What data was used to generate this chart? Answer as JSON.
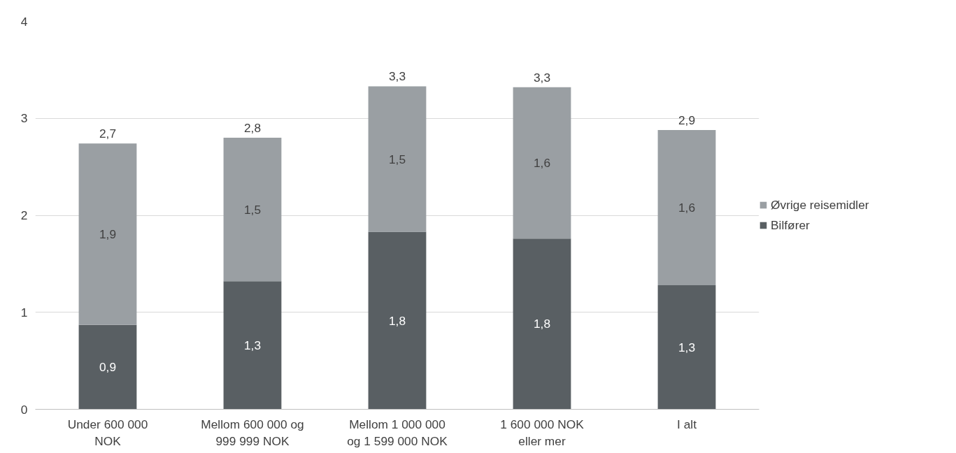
{
  "chart_data": {
    "type": "bar",
    "stacked": true,
    "categories": [
      "Under 600 000\nNOK",
      "Mellom 600 000 og\n999 999 NOK",
      "Mellom 1 000 000\nog 1 599 000 NOK",
      "1 600 000 NOK\neller mer",
      "I alt"
    ],
    "series": [
      {
        "name": "Bilfører",
        "color": "#595f63",
        "values": [
          0.87,
          1.32,
          1.83,
          1.76,
          1.28
        ],
        "value_labels": [
          "0,9",
          "1,3",
          "1,8",
          "1,8",
          "1,3"
        ]
      },
      {
        "name": "Øvrige reisemidler",
        "color": "#9a9fa3",
        "values": [
          1.87,
          1.48,
          1.5,
          1.56,
          1.6
        ],
        "value_labels": [
          "1,9",
          "1,5",
          "1,5",
          "1,6",
          "1,6"
        ]
      }
    ],
    "totals": [
      "2,7",
      "2,8",
      "3,3",
      "3,3",
      "2,9"
    ],
    "ylim": [
      0,
      4
    ],
    "yticks": [
      0,
      1,
      2,
      3,
      4
    ],
    "grid": "y",
    "legend": "right"
  }
}
